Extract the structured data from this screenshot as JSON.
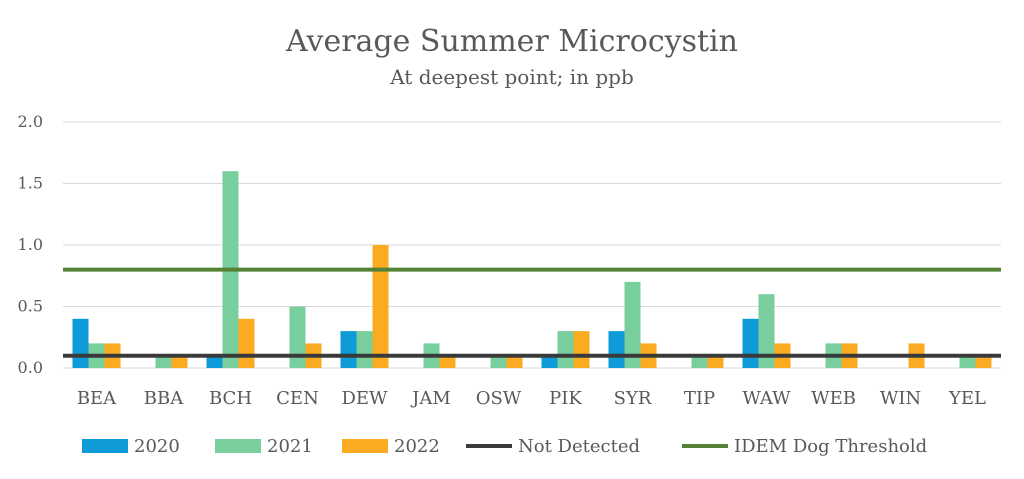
{
  "chart_data": {
    "type": "bar",
    "title": "Average Summer Microcystin",
    "subtitle": "At deepest point; in ppb",
    "categories": [
      "BEA",
      "BBA",
      "BCH",
      "CEN",
      "DEW",
      "JAM",
      "OSW",
      "PIK",
      "SYR",
      "TIP",
      "WAW",
      "WEB",
      "WIN",
      "YEL"
    ],
    "y_ticks": [
      "0.0",
      "0.5",
      "1.0",
      "1.5",
      "2.0"
    ],
    "ylim": [
      0,
      2.0
    ],
    "grid": true,
    "legend_placement": "bottom",
    "series": [
      {
        "name": "2020",
        "color": "#0f9ad8",
        "values": [
          0.4,
          null,
          0.1,
          null,
          0.3,
          null,
          null,
          0.1,
          0.3,
          null,
          0.4,
          null,
          null,
          null
        ]
      },
      {
        "name": "2021",
        "color": "#78cf9d",
        "values": [
          0.2,
          0.1,
          1.6,
          0.5,
          0.3,
          0.2,
          0.1,
          0.3,
          0.7,
          0.1,
          0.6,
          0.2,
          null,
          0.1
        ]
      },
      {
        "name": "2022",
        "color": "#fbab22",
        "values": [
          0.2,
          0.1,
          0.4,
          0.2,
          1.0,
          0.1,
          0.1,
          0.3,
          0.2,
          0.1,
          0.2,
          0.2,
          0.2,
          0.1
        ]
      }
    ],
    "reference_lines": [
      {
        "name": "Not Detected",
        "value": 0.1,
        "color": "#3a3a3a"
      },
      {
        "name": "IDEM Dog Threshold",
        "value": 0.8,
        "color": "#548235"
      }
    ]
  }
}
